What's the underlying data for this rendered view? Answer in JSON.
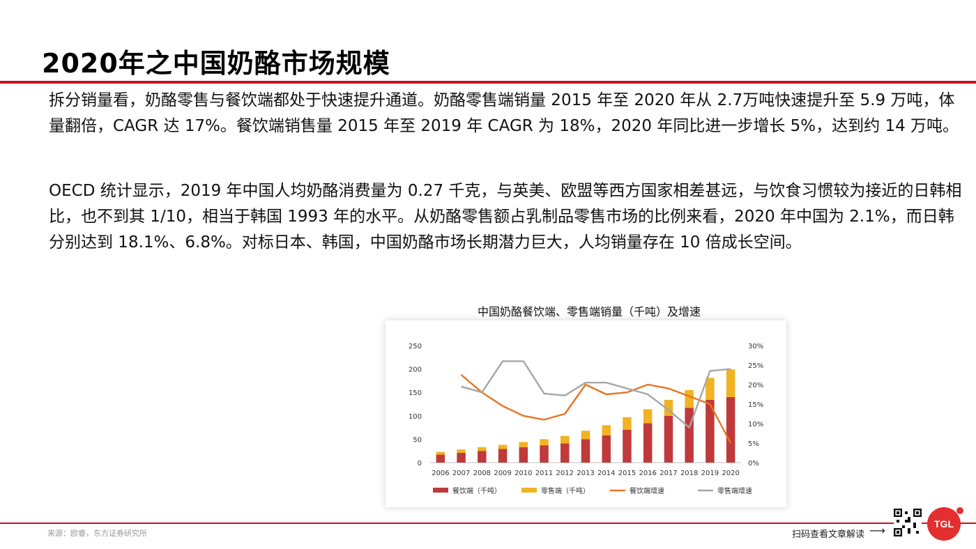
{
  "page": {
    "title": "2020年之中国奶酪市场规模",
    "paragraph1": "拆分销量看，奶酪零售与餐饮端都处于快速提升通道。奶酪零售端销量 2015 年至 2020 年从 2.7万吨快速提升至 5.9 万吨，体量翻倍，CAGR 达 17%。餐饮端销售量 2015 年至 2019 年 CAGR 为 18%，2020 年同比进一步增长 5%，达到约 14 万吨。",
    "paragraph2": "OECD 统计显示，2019 年中国人均奶酪消费量为 0.27 千克，与英美、欧盟等西方国家相差甚远，与饮食习惯较为接近的日韩相比，也不到其 1/10，相当于韩国 1993 年的水平。从奶酪零售额占乳制品零售市场的比例来看，2020 年中国为 2.1%，而日韩分别达到 18.1%、6.8%。对标日本、韩国，中国奶酪市场长期潜力巨大，人均销量存在 10 倍成长空间。",
    "source": "来源：欧睿，东方证券研究所",
    "qr_label": "扫码查看文章解读",
    "arrow": "⟶",
    "logo_text": "TGL"
  },
  "colors": {
    "accent_red": "#c8101e",
    "catering_bar": "#c0393b",
    "retail_bar": "#f0b323",
    "catering_growth": "#e8741e",
    "retail_growth": "#a6a6a6"
  },
  "chart_data": {
    "type": "bar",
    "title": "中国奶酪餐饮端、零售端销量（千吨）及增速",
    "categories": [
      "2006",
      "2007",
      "2008",
      "2009",
      "2010",
      "2011",
      "2012",
      "2013",
      "2014",
      "2015",
      "2016",
      "2017",
      "2018",
      "2019",
      "2020"
    ],
    "ylim_left": [
      0,
      250
    ],
    "yticks_left": [
      "0",
      "50",
      "100",
      "150",
      "200",
      "250"
    ],
    "ylim_right": [
      0,
      0.3
    ],
    "yticks_right": [
      "0%",
      "5%",
      "10%",
      "15%",
      "20%",
      "25%",
      "30%"
    ],
    "series": [
      {
        "name": "餐饮端（千吨）",
        "kind": "bar",
        "stack": "a",
        "axis": "left",
        "values": [
          17,
          21,
          25,
          29,
          33,
          37,
          41,
          50,
          58,
          70,
          84,
          100,
          117,
          134,
          140
        ]
      },
      {
        "name": "零售端（千吨）",
        "kind": "bar",
        "stack": "a",
        "axis": "left",
        "values": [
          6,
          7,
          8,
          9,
          11,
          13,
          16,
          18,
          22,
          27,
          30,
          34,
          38,
          47,
          59
        ]
      },
      {
        "name": "餐饮端增速",
        "kind": "line",
        "axis": "right",
        "values": [
          null,
          0.225,
          0.18,
          0.145,
          0.12,
          0.11,
          0.125,
          0.2,
          0.175,
          0.18,
          0.2,
          0.19,
          0.17,
          0.15,
          0.05
        ]
      },
      {
        "name": "零售端增速",
        "kind": "line",
        "axis": "right",
        "values": [
          null,
          0.195,
          0.18,
          0.26,
          0.26,
          0.177,
          0.172,
          0.205,
          0.205,
          0.19,
          0.175,
          0.135,
          0.09,
          0.235,
          0.24
        ]
      }
    ],
    "legend_position": "bottom",
    "grid": false
  }
}
